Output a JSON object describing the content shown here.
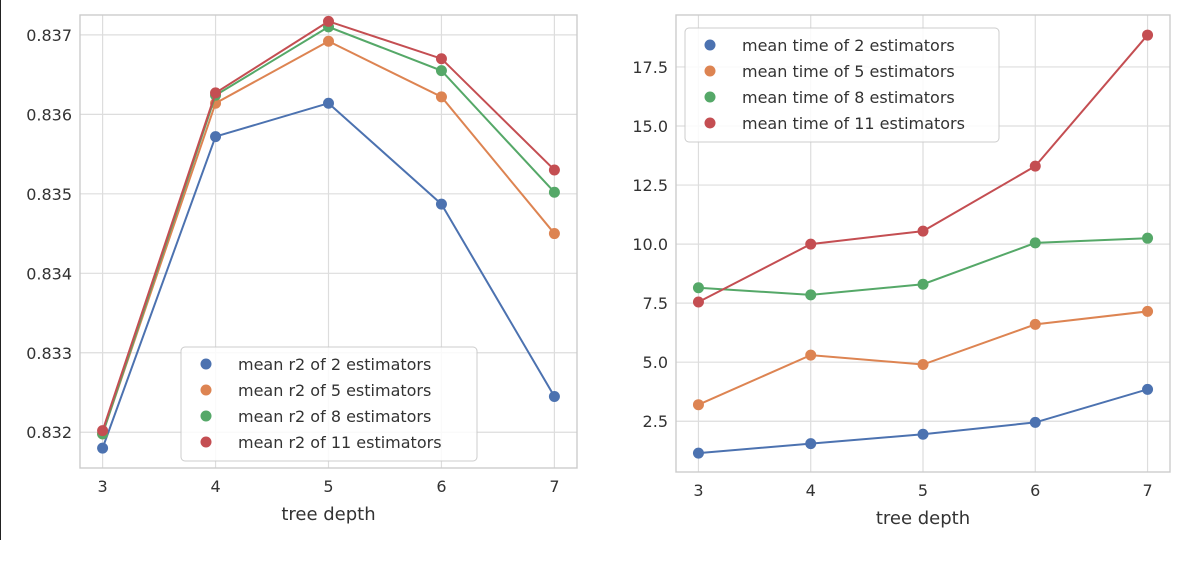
{
  "chart_data": [
    {
      "type": "line",
      "x": [
        3,
        4,
        5,
        6,
        7
      ],
      "xlabel": "tree depth",
      "ylabel": "",
      "xlim": [
        2.8,
        7.2
      ],
      "ylim": [
        0.83155,
        0.83725
      ],
      "xticks": [
        3,
        4,
        5,
        6,
        7
      ],
      "yticks": [
        0.832,
        0.833,
        0.834,
        0.835,
        0.836,
        0.837
      ],
      "ytick_labels": [
        "0.832",
        "0.833",
        "0.834",
        "0.835",
        "0.836",
        "0.837"
      ],
      "grid": true,
      "legend_position": "lower-center",
      "series": [
        {
          "name": "mean r2 of 2 estimators",
          "color": "#4c72b0",
          "values": [
            0.8318,
            0.83572,
            0.83614,
            0.83487,
            0.83245
          ]
        },
        {
          "name": "mean r2 of 5 estimators",
          "color": "#dd8452",
          "values": [
            0.83198,
            0.83614,
            0.83692,
            0.83622,
            0.8345
          ]
        },
        {
          "name": "mean r2 of 8 estimators",
          "color": "#55a868",
          "values": [
            0.83198,
            0.83624,
            0.8371,
            0.83655,
            0.83502
          ]
        },
        {
          "name": "mean r2 of 11 estimators",
          "color": "#c44e52",
          "values": [
            0.83202,
            0.83627,
            0.83717,
            0.8367,
            0.8353
          ]
        }
      ]
    },
    {
      "type": "line",
      "x": [
        3,
        4,
        5,
        6,
        7
      ],
      "xlabel": "tree depth",
      "ylabel": "",
      "xlim": [
        2.8,
        7.2
      ],
      "ylim": [
        0.35,
        19.7
      ],
      "xticks": [
        3,
        4,
        5,
        6,
        7
      ],
      "yticks": [
        2.5,
        5.0,
        7.5,
        10.0,
        12.5,
        15.0,
        17.5
      ],
      "ytick_labels": [
        "2.5",
        "5.0",
        "7.5",
        "10.0",
        "12.5",
        "15.0",
        "17.5"
      ],
      "grid": true,
      "legend_position": "upper-left",
      "series": [
        {
          "name": "mean time of 2 estimators",
          "color": "#4c72b0",
          "values": [
            1.15,
            1.55,
            1.95,
            2.45,
            3.85
          ]
        },
        {
          "name": "mean time of 5 estimators",
          "color": "#dd8452",
          "values": [
            3.2,
            5.3,
            4.9,
            6.6,
            7.15
          ]
        },
        {
          "name": "mean time of 8 estimators",
          "color": "#55a868",
          "values": [
            8.15,
            7.85,
            8.3,
            10.05,
            10.25
          ]
        },
        {
          "name": "mean time of 11 estimators",
          "color": "#c44e52",
          "values": [
            7.55,
            10.0,
            10.55,
            13.3,
            18.85
          ]
        }
      ]
    }
  ]
}
